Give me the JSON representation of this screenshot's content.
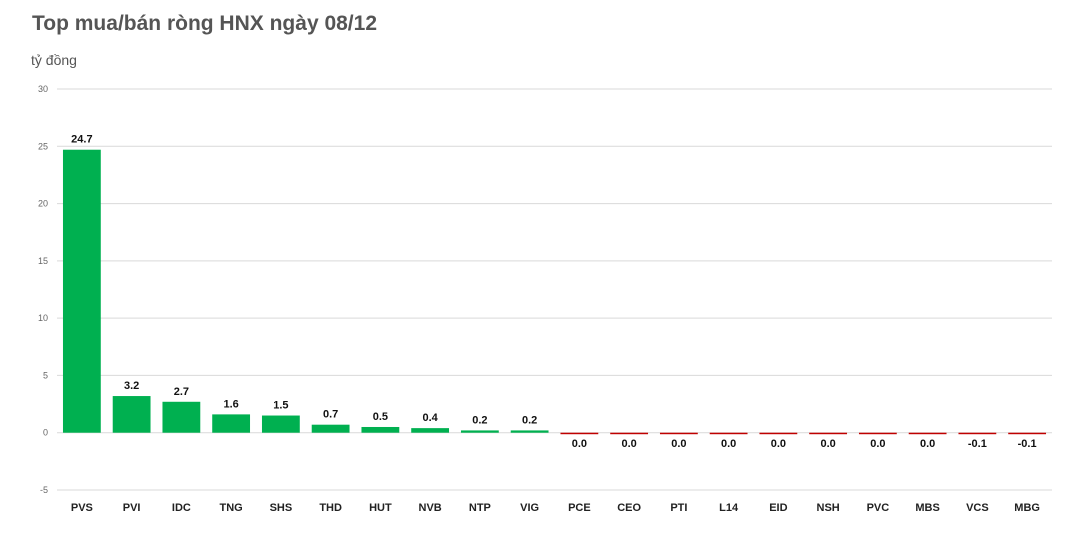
{
  "chart_data": {
    "type": "bar",
    "title": "Top mua/bán ròng HNX ngày 08/12",
    "unit_label": "tỷ đồng",
    "categories": [
      "PVS",
      "PVI",
      "IDC",
      "TNG",
      "SHS",
      "THD",
      "HUT",
      "NVB",
      "NTP",
      "VIG",
      "PCE",
      "CEO",
      "PTI",
      "L14",
      "EID",
      "NSH",
      "PVC",
      "MBS",
      "VCS",
      "MBG"
    ],
    "values": [
      24.7,
      3.2,
      2.7,
      1.6,
      1.5,
      0.7,
      0.5,
      0.4,
      0.2,
      0.2,
      -0.02,
      -0.02,
      -0.02,
      -0.02,
      -0.02,
      -0.02,
      -0.02,
      -0.02,
      -0.1,
      -0.1
    ],
    "data_labels": [
      "24.7",
      "3.2",
      "2.7",
      "1.6",
      "1.5",
      "0.7",
      "0.5",
      "0.4",
      "0.2",
      "0.2",
      "0.0",
      "0.0",
      "0.0",
      "0.0",
      "0.0",
      "0.0",
      "0.0",
      "0.0",
      "-0.1",
      "-0.1"
    ],
    "ylim": [
      -5,
      30
    ],
    "yticks": [
      -5,
      0,
      5,
      10,
      15,
      20,
      25,
      30
    ],
    "grid": true,
    "colors": {
      "positive": "#00b050",
      "negative": "#c00000",
      "grid": "#d9d9d9"
    }
  }
}
